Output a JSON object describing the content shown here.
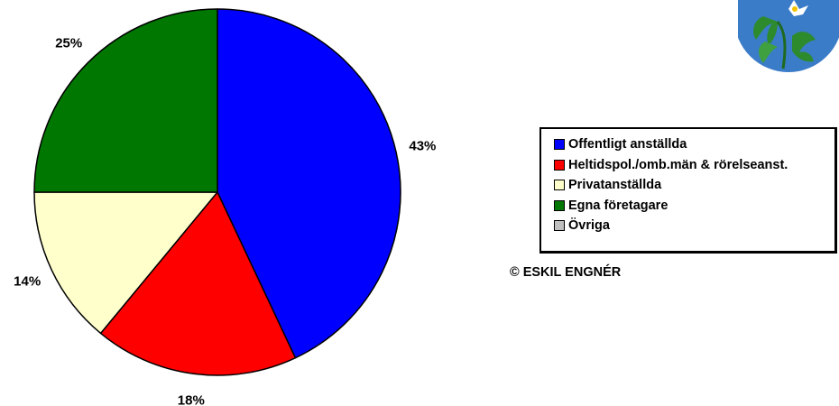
{
  "chart_data": {
    "type": "pie",
    "title": "",
    "slices": [
      {
        "label": "Offentligt anställda",
        "value": 43,
        "display": "43%",
        "color": "#0000ff"
      },
      {
        "label": "Heltidspol./omb.män & rörelseanst.",
        "value": 18,
        "display": "18%",
        "color": "#ff0000"
      },
      {
        "label": "Privatanställda",
        "value": 14,
        "display": "14%",
        "color": "#ffffcc"
      },
      {
        "label": "Egna företagare",
        "value": 25,
        "display": "25%",
        "color": "#007700"
      },
      {
        "label": "Övriga",
        "value": 0,
        "display": "",
        "color": "#c0c0c0"
      }
    ],
    "start_angle_deg": 0,
    "direction": "clockwise",
    "legend_position": "right"
  },
  "legend": {
    "items": [
      {
        "label": "Offentligt anställda",
        "color": "#0000ff"
      },
      {
        "label": "Heltidspol./omb.män & rörelseanst.",
        "color": "#ff0000"
      },
      {
        "label": "Privatanställda",
        "color": "#ffffcc"
      },
      {
        "label": "Egna företagare",
        "color": "#007700"
      },
      {
        "label": "Övriga",
        "color": "#c0c0c0"
      }
    ]
  },
  "copyright": "© ESKIL ENGNÉR",
  "logo": {
    "icon": "flower-leaf-logo-icon",
    "background": "#3a7cc8"
  }
}
